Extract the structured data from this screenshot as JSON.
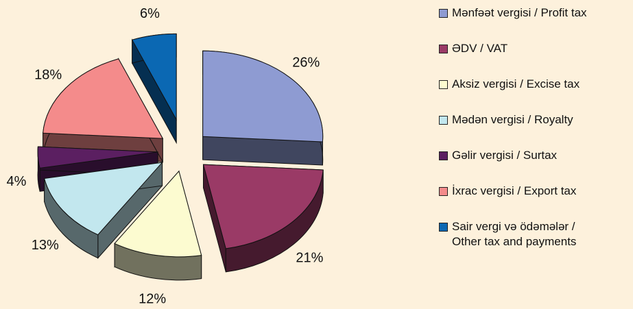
{
  "chart_data": {
    "type": "pie3d",
    "categories": [
      "Mənfəət vergisi / Profit tax",
      "ƏDV / VAT",
      "Aksiz vergisi / Excise tax",
      "Mədən vergisi / Royalty",
      "Gəlir vergisi / Surtax",
      "İxrac vergisi / Export tax",
      "Sair vergi və ödəmələr / Other tax and payments"
    ],
    "values": [
      26,
      21,
      12,
      13,
      4,
      18,
      6
    ],
    "value_labels": [
      "26%",
      "21%",
      "12%",
      "13%",
      "4%",
      "18%",
      "6%"
    ],
    "colors": [
      "#8e9bd2",
      "#9a3a66",
      "#fcfbd0",
      "#c2e7ee",
      "#5b1f61",
      "#f48b8b",
      "#0b68b3"
    ],
    "legend": "right"
  }
}
